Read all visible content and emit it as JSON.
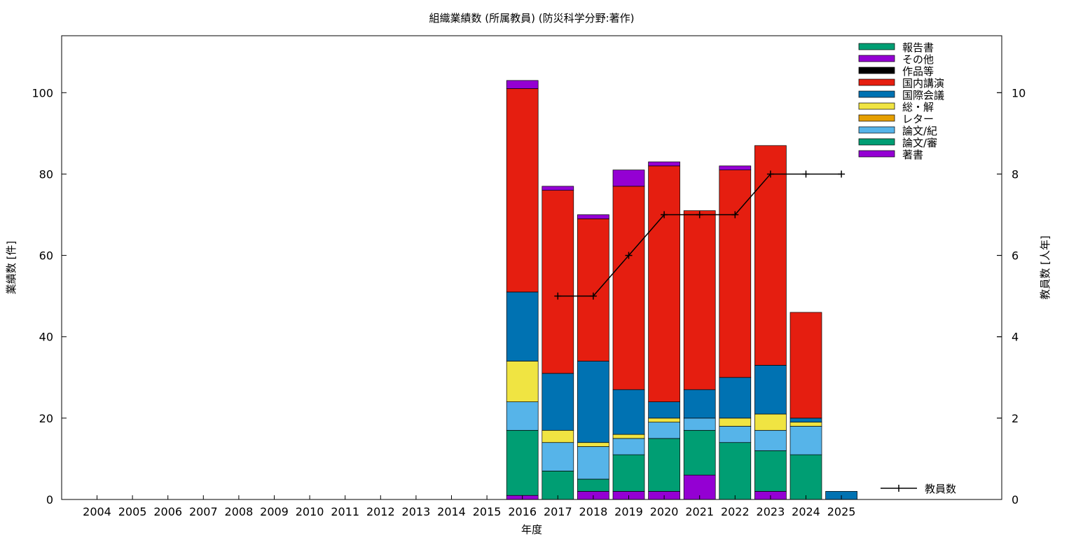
{
  "chart_data": {
    "type": "bar",
    "title": "組織業績数 (所属教員) (防災科学分野:著作)",
    "xlabel": "年度",
    "ylabel": "業績数 [件]",
    "y2label": "教員数 [人年]",
    "ylim": [
      0,
      114
    ],
    "y2lim": [
      0,
      11.4
    ],
    "yticks": [
      0,
      20,
      40,
      60,
      80,
      100
    ],
    "y2ticks": [
      0,
      2,
      4,
      6,
      8,
      10
    ],
    "grid": false,
    "legend_position": "top-right",
    "categories": [
      "2004",
      "2005",
      "2006",
      "2007",
      "2008",
      "2009",
      "2010",
      "2011",
      "2012",
      "2013",
      "2014",
      "2015",
      "2016",
      "2017",
      "2018",
      "2019",
      "2020",
      "2021",
      "2022",
      "2023",
      "2024",
      "2025"
    ],
    "series": [
      {
        "name": "著書",
        "color": "#9400d3",
        "values": [
          0,
          0,
          0,
          0,
          0,
          0,
          0,
          0,
          0,
          0,
          0,
          0,
          1,
          0,
          2,
          2,
          2,
          6,
          0,
          2,
          0,
          0
        ]
      },
      {
        "name": "論文/審",
        "color": "#009e73",
        "values": [
          0,
          0,
          0,
          0,
          0,
          0,
          0,
          0,
          0,
          0,
          0,
          0,
          16,
          7,
          3,
          9,
          13,
          11,
          14,
          10,
          11,
          0
        ]
      },
      {
        "name": "論文/紀",
        "color": "#56b4e9",
        "values": [
          0,
          0,
          0,
          0,
          0,
          0,
          0,
          0,
          0,
          0,
          0,
          0,
          7,
          7,
          8,
          4,
          4,
          3,
          4,
          5,
          7,
          0
        ]
      },
      {
        "name": "レター",
        "color": "#e69f00",
        "values": [
          0,
          0,
          0,
          0,
          0,
          0,
          0,
          0,
          0,
          0,
          0,
          0,
          0,
          0,
          0,
          0,
          0,
          0,
          0,
          0,
          0,
          0
        ]
      },
      {
        "name": "総・解",
        "color": "#f0e442",
        "values": [
          0,
          0,
          0,
          0,
          0,
          0,
          0,
          0,
          0,
          0,
          0,
          0,
          10,
          3,
          1,
          1,
          1,
          0,
          2,
          4,
          1,
          0
        ]
      },
      {
        "name": "国際会議",
        "color": "#0072b2",
        "values": [
          0,
          0,
          0,
          0,
          0,
          0,
          0,
          0,
          0,
          0,
          0,
          0,
          17,
          14,
          20,
          11,
          4,
          7,
          10,
          12,
          1,
          2
        ]
      },
      {
        "name": "国内講演",
        "color": "#e51e10",
        "values": [
          0,
          0,
          0,
          0,
          0,
          0,
          0,
          0,
          0,
          0,
          0,
          0,
          50,
          45,
          35,
          50,
          58,
          44,
          51,
          54,
          26,
          0
        ]
      },
      {
        "name": "作品等",
        "color": "#000000",
        "values": [
          0,
          0,
          0,
          0,
          0,
          0,
          0,
          0,
          0,
          0,
          0,
          0,
          0,
          0,
          0,
          0,
          0,
          0,
          0,
          0,
          0,
          0
        ]
      },
      {
        "name": "その他",
        "color": "#9400d3",
        "values": [
          0,
          0,
          0,
          0,
          0,
          0,
          0,
          0,
          0,
          0,
          0,
          0,
          2,
          1,
          1,
          4,
          1,
          0,
          1,
          0,
          0,
          0
        ]
      },
      {
        "name": "報告書",
        "color": "#009e73",
        "values": [
          0,
          0,
          0,
          0,
          0,
          0,
          0,
          0,
          0,
          0,
          0,
          0,
          0,
          0,
          0,
          0,
          0,
          0,
          0,
          0,
          0,
          0
        ]
      }
    ],
    "line": {
      "name": "教員数",
      "color": "#000000",
      "x": [
        "2017",
        "2018",
        "2019",
        "2020",
        "2021",
        "2022",
        "2023",
        "2024",
        "2025"
      ],
      "values": [
        5,
        5,
        6,
        7,
        7,
        7,
        8,
        8,
        8
      ]
    }
  }
}
